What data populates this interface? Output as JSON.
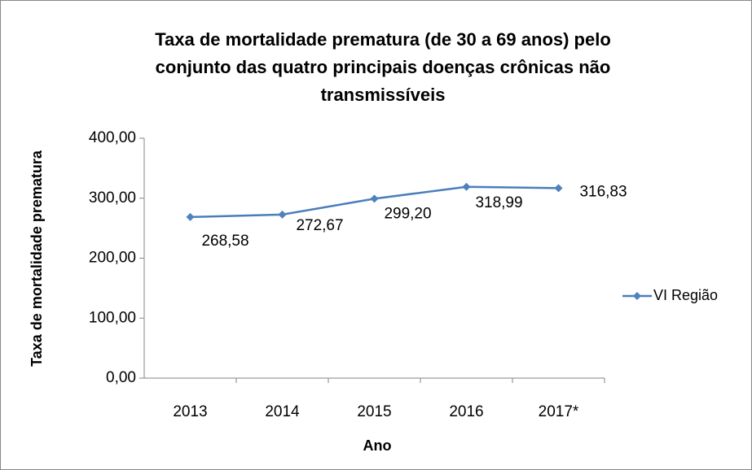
{
  "chart_data": {
    "type": "line",
    "title": "Taxa de mortalidade prematura (de 30 a 69 anos) pelo conjunto das quatro principais doenças crônicas não transmissíveis",
    "x_label": "Ano",
    "y_label": "Taxa de mortalidade prematura",
    "categories": [
      "2013",
      "2014",
      "2015",
      "2016",
      "2017*"
    ],
    "series": [
      {
        "name": "VI Região",
        "color": "#4a7ebb",
        "values": [
          268.58,
          272.67,
          299.2,
          318.99,
          316.83
        ],
        "value_labels": [
          "268,58",
          "272,67",
          "299,20",
          "318,99",
          "316,83"
        ]
      }
    ],
    "ylim": [
      0,
      400
    ],
    "yticks": [
      {
        "value": 0,
        "label": "0,00"
      },
      {
        "value": 100,
        "label": "100,00"
      },
      {
        "value": 200,
        "label": "200,00"
      },
      {
        "value": 300,
        "label": "300,00"
      },
      {
        "value": 400,
        "label": "400,00"
      }
    ],
    "legend": "right",
    "grid": false
  }
}
